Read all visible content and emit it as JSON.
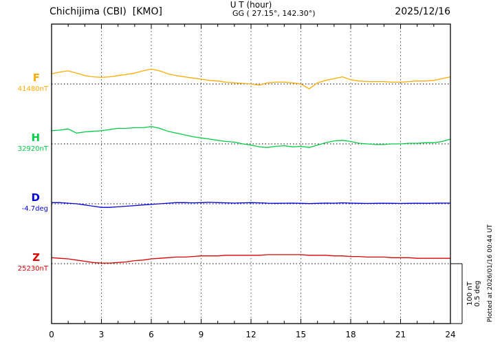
{
  "header": {
    "station": "Chichijima (CBI)  [KMO]",
    "coords": "GG ( 27.15°, 142.30°)",
    "date": "2025/12/16"
  },
  "plotted_note": "Plotted at 2026/01/16 00:44 UT",
  "scale_label": {
    "line1": "100 nT",
    "line2": "0.5 deg"
  },
  "chart_data": {
    "type": "line",
    "title": "Chichijima (CBI) [KMO] magnetogram 2025/12/16",
    "xlabel": "U T (hour)",
    "x_ticks": [
      0,
      3,
      6,
      9,
      12,
      15,
      18,
      21,
      24
    ],
    "x_range": [
      0,
      24
    ],
    "x_step_hours": 0.5,
    "scale": {
      "nT_per_division": 100,
      "deg_per_division": 0.5
    },
    "series": [
      {
        "name": "F",
        "unit": "nT",
        "baseline_value": 41480,
        "baseline_label": "41480nT",
        "color": "#ffaa00",
        "offsets": [
          17,
          20,
          22,
          18,
          14,
          12,
          11,
          12,
          14,
          16,
          18,
          22,
          25,
          22,
          17,
          14,
          12,
          10,
          8,
          6,
          5,
          3,
          2,
          1,
          0,
          -2,
          2,
          3,
          3,
          2,
          0,
          -8,
          2,
          6,
          9,
          12,
          7,
          5,
          4,
          4,
          4,
          3,
          3,
          4,
          5,
          5,
          6,
          9,
          12
        ]
      },
      {
        "name": "H",
        "unit": "nT",
        "baseline_value": 32920,
        "baseline_label": "32920nT",
        "color": "#00cc44",
        "offsets": [
          22,
          23,
          25,
          18,
          20,
          21,
          22,
          24,
          26,
          26,
          27,
          27,
          29,
          26,
          21,
          18,
          15,
          12,
          10,
          8,
          6,
          4,
          3,
          0,
          -2,
          -5,
          -6,
          -4,
          -3,
          -5,
          -4,
          -6,
          -2,
          2,
          5,
          6,
          4,
          1,
          0,
          -1,
          -1,
          0,
          0,
          1,
          1,
          2,
          2,
          4,
          8
        ]
      },
      {
        "name": "D",
        "unit": "deg",
        "baseline_value": -4.7,
        "baseline_label": "-4.7deg",
        "color": "#0000dd",
        "offsets": [
          0.01,
          0.01,
          0.005,
          0,
          -0.01,
          -0.02,
          -0.03,
          -0.03,
          -0.025,
          -0.02,
          -0.015,
          -0.01,
          -0.005,
          0,
          0.005,
          0.01,
          0.01,
          0.008,
          0.01,
          0.012,
          0.01,
          0.008,
          0.006,
          0.008,
          0.01,
          0.008,
          0.005,
          0.004,
          0.005,
          0.006,
          0.004,
          0.002,
          0.004,
          0.006,
          0.005,
          0.008,
          0.006,
          0.004,
          0.003,
          0.004,
          0.005,
          0.004,
          0.003,
          0.004,
          0.005,
          0.004,
          0.005,
          0.006,
          0.006
        ]
      },
      {
        "name": "Z",
        "unit": "nT",
        "baseline_value": 25230,
        "baseline_label": "25230nT",
        "color": "#dd0000",
        "offsets": [
          10,
          9,
          8,
          6,
          4,
          2,
          1,
          1,
          2,
          3,
          5,
          6,
          8,
          9,
          10,
          11,
          11,
          12,
          13,
          13,
          13,
          14,
          14,
          14,
          14,
          14,
          15,
          15,
          15,
          15,
          15,
          14,
          14,
          14,
          13,
          13,
          12,
          12,
          11,
          11,
          11,
          10,
          10,
          10,
          9,
          9,
          9,
          9,
          9
        ]
      }
    ]
  }
}
